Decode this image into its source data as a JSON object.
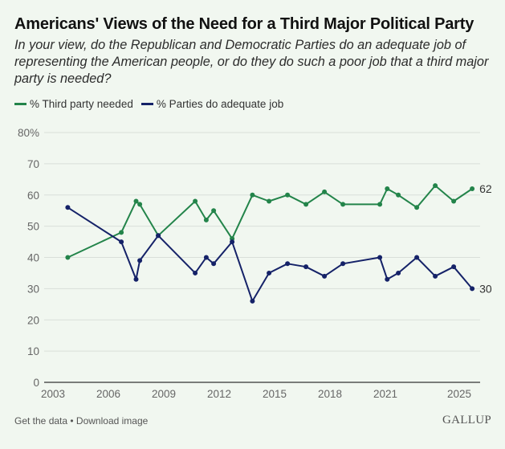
{
  "header": {
    "title": "Americans' Views of the Need for a Third Major Political Party",
    "subtitle": "In your view, do the Republican and Democratic Parties do an adequate job of representing the American people, or do they do such a poor job that a third major party is needed?"
  },
  "legend": [
    {
      "label": "% Third party needed",
      "color": "#23844a"
    },
    {
      "label": "% Parties do adequate job",
      "color": "#152268"
    }
  ],
  "footer": {
    "get_data": "Get the data",
    "separator": " • ",
    "download": "Download image",
    "brand": "GALLUP"
  },
  "chart_data": {
    "type": "line",
    "title": "Americans' Views of the Need for a Third Major Political Party",
    "xlabel": "",
    "ylabel": "",
    "xlim": [
      2002.5,
      2026.2
    ],
    "ylim": [
      0,
      80
    ],
    "grid": true,
    "legend_position": "top-left",
    "x_ticks": [
      2003,
      2006,
      2009,
      2012,
      2015,
      2018,
      2021,
      2025
    ],
    "y_ticks": [
      0,
      10,
      20,
      30,
      40,
      50,
      60,
      70,
      80
    ],
    "y_tick_labels": [
      "0",
      "10",
      "20",
      "30",
      "40",
      "50",
      "60",
      "70",
      "80%"
    ],
    "x": [
      2003.8,
      2006.7,
      2007.5,
      2007.7,
      2008.7,
      2010.7,
      2011.3,
      2011.7,
      2012.7,
      2013.8,
      2014.7,
      2015.7,
      2016.7,
      2017.7,
      2018.7,
      2020.7,
      2021.1,
      2021.7,
      2022.7,
      2023.7,
      2024.7,
      2025.7
    ],
    "series": [
      {
        "name": "% Third party needed",
        "color": "#23844a",
        "values": [
          40,
          48,
          58,
          57,
          47,
          58,
          52,
          55,
          46,
          60,
          58,
          60,
          57,
          61,
          57,
          57,
          62,
          60,
          56,
          63,
          58,
          62
        ],
        "end_label": "62"
      },
      {
        "name": "% Parties do adequate job",
        "color": "#152268",
        "values": [
          56,
          45,
          33,
          39,
          47,
          35,
          40,
          38,
          45,
          26,
          35,
          38,
          37,
          34,
          38,
          40,
          33,
          35,
          40,
          34,
          37,
          30
        ],
        "end_label": "30"
      }
    ]
  }
}
